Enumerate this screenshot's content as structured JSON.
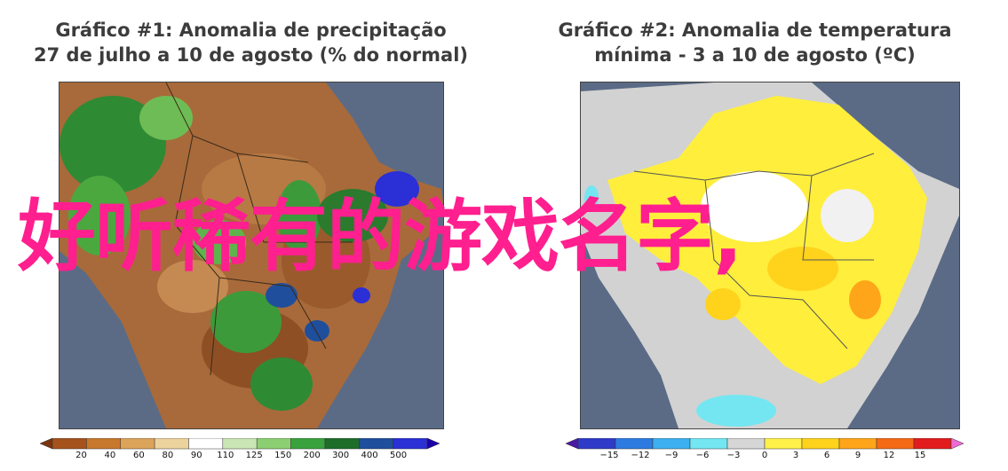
{
  "panels": [
    {
      "title_line1": "Gráfico #1: Anomalia de precipitação",
      "title_line2": "27 de julho a 10 de agosto (% do normal)",
      "legend_ticks": [
        "20",
        "40",
        "60",
        "80",
        "90",
        "110",
        "125",
        "150",
        "200",
        "300",
        "400",
        "500"
      ],
      "legend_colors": [
        "#7a3410",
        "#a5521c",
        "#c8782d",
        "#dca35a",
        "#ecd39e",
        "#ffffff",
        "#c9e6b4",
        "#8ccf72",
        "#3aa23c",
        "#1e6e2a",
        "#1f4f9c",
        "#2b2fd6",
        "#1a00a8"
      ]
    },
    {
      "title_line1": "Gráfico #2: Anomalia de temperatura",
      "title_line2": "mínima - 3 a 10 de agosto (ºC)",
      "legend_ticks": [
        "−15",
        "−12",
        "−9",
        "−6",
        "−3",
        "0",
        "3",
        "6",
        "9",
        "12",
        "15"
      ],
      "legend_colors": [
        "#4a1ba0",
        "#2f3ac8",
        "#2d7be0",
        "#3cb0f0",
        "#74e6f2",
        "#d6d6d6",
        "#fff04a",
        "#ffd21c",
        "#ffa51a",
        "#f56a14",
        "#e21c1c",
        "#f06ad6"
      ]
    }
  ],
  "overlay_text": "好听稀有的游戏名字,",
  "colors": {
    "ocean": "#5b6b86",
    "overlay": "#ff1f8f",
    "title": "#3c3c3c"
  }
}
